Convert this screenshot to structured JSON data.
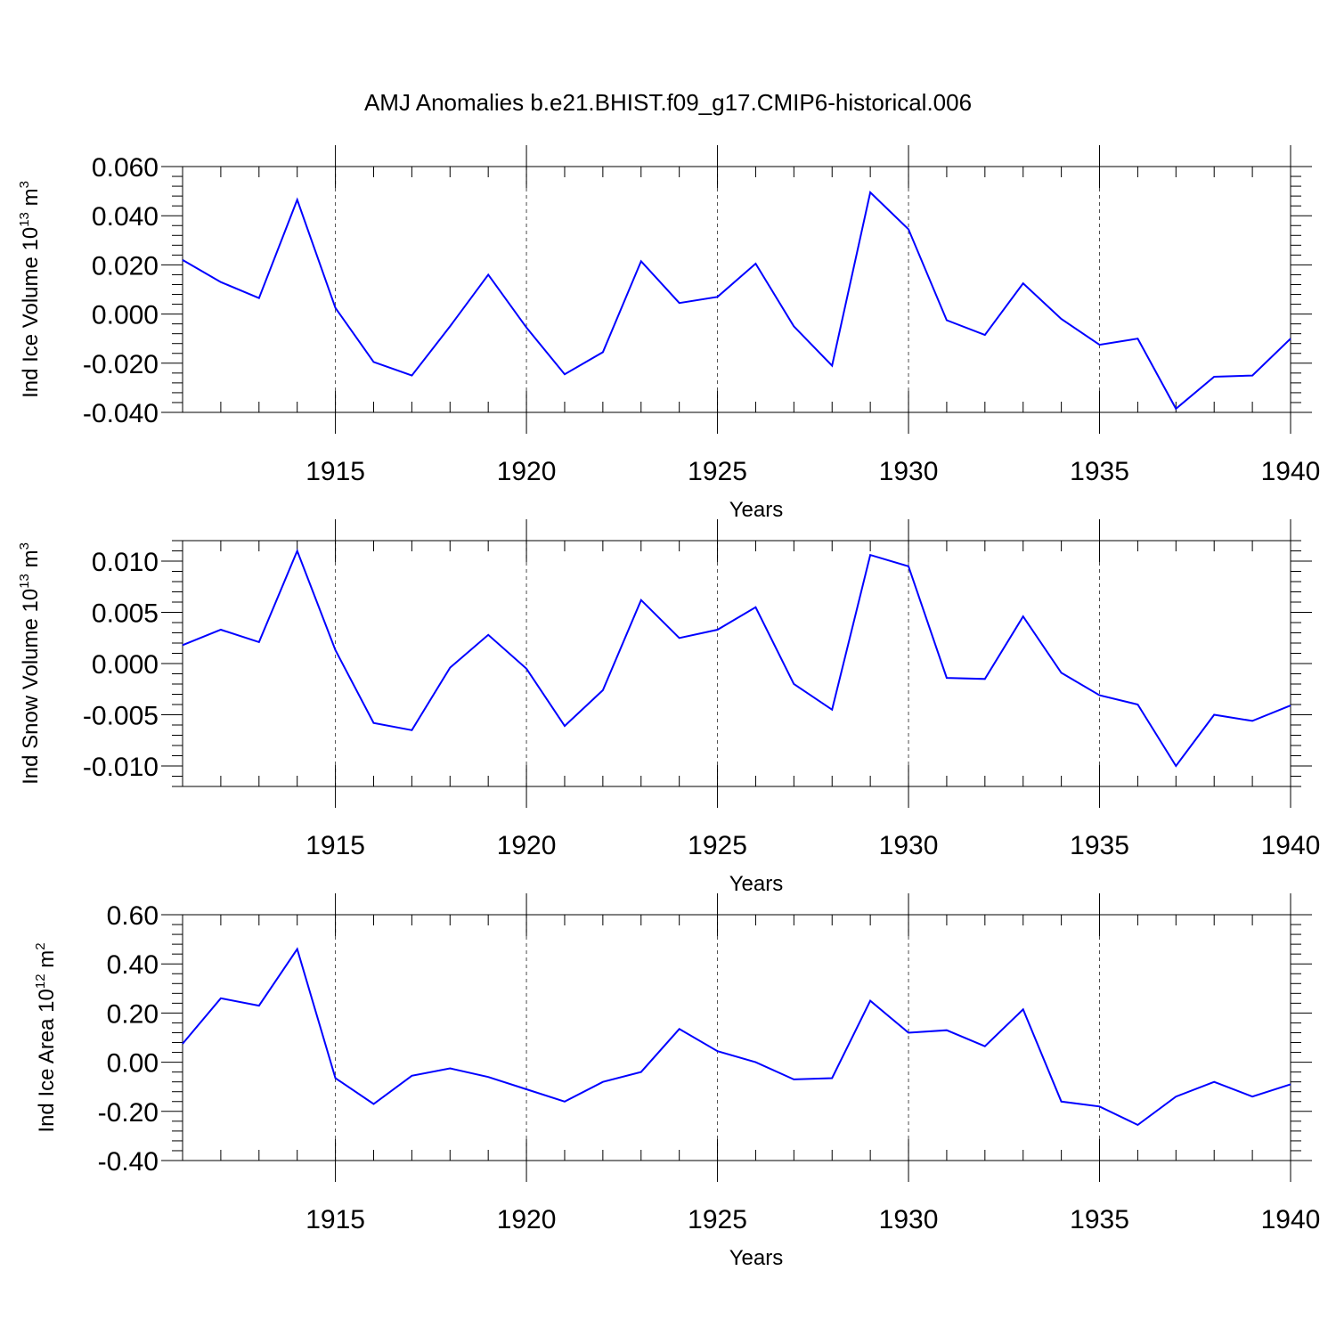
{
  "title": "AMJ Anomalies b.e21.BHIST.f09_g17.CMIP6-historical.006",
  "colors": {
    "series": "#0000ff",
    "axes": "#000000",
    "grid": "#000000"
  },
  "chart_data": [
    {
      "type": "line",
      "xlabel": "Years",
      "ylabel": {
        "main": "Ind Ice Volume 10",
        "sup": "13",
        "unit": " m",
        "unit_sup": "3"
      },
      "xlim": [
        1911,
        1940
      ],
      "ylim": [
        -0.04,
        0.06
      ],
      "yticks": [
        -0.04,
        -0.02,
        0.0,
        0.02,
        0.04,
        0.06
      ],
      "ytick_labels": [
        "-0.040",
        "-0.020",
        "0.000",
        "0.020",
        "0.040",
        "0.060"
      ],
      "xticks": [
        1915,
        1920,
        1925,
        1930,
        1935,
        1940
      ],
      "xtick_labels": [
        "1915",
        "1920",
        "1925",
        "1930",
        "1935",
        "1940"
      ],
      "grid": "vertical dashed at major x ticks",
      "x": [
        1911,
        1912,
        1913,
        1914,
        1915,
        1916,
        1917,
        1918,
        1919,
        1920,
        1921,
        1922,
        1923,
        1924,
        1925,
        1926,
        1927,
        1928,
        1929,
        1930,
        1931,
        1932,
        1933,
        1934,
        1935,
        1936,
        1937,
        1938,
        1939,
        1940
      ],
      "y": [
        0.022,
        0.013,
        0.0065,
        0.0465,
        0.0025,
        -0.0195,
        -0.025,
        -0.005,
        0.016,
        -0.0055,
        -0.0245,
        -0.0155,
        0.0215,
        0.0045,
        0.007,
        0.0205,
        -0.005,
        -0.021,
        0.0495,
        0.0345,
        -0.0025,
        -0.0085,
        0.0125,
        -0.002,
        -0.0125,
        -0.01,
        -0.0385,
        -0.0255,
        -0.025,
        -0.01
      ]
    },
    {
      "type": "line",
      "xlabel": "Years",
      "ylabel": {
        "main": "Ind Snow Volume 10",
        "sup": "13",
        "unit": " m",
        "unit_sup": "3"
      },
      "xlim": [
        1911,
        1940
      ],
      "ylim": [
        -0.012,
        0.012
      ],
      "yticks": [
        -0.01,
        -0.005,
        0.0,
        0.005,
        0.01
      ],
      "ytick_labels": [
        "-0.010",
        "-0.005",
        "0.000",
        "0.005",
        "0.010"
      ],
      "xticks": [
        1915,
        1920,
        1925,
        1930,
        1935,
        1940
      ],
      "xtick_labels": [
        "1915",
        "1920",
        "1925",
        "1930",
        "1935",
        "1940"
      ],
      "grid": "vertical dashed at major x ticks",
      "x": [
        1911,
        1912,
        1913,
        1914,
        1915,
        1916,
        1917,
        1918,
        1919,
        1920,
        1921,
        1922,
        1923,
        1924,
        1925,
        1926,
        1927,
        1928,
        1929,
        1930,
        1931,
        1932,
        1933,
        1934,
        1935,
        1936,
        1937,
        1938,
        1939,
        1940
      ],
      "y": [
        0.0018,
        0.0033,
        0.0021,
        0.011,
        0.0013,
        -0.0058,
        -0.0065,
        -0.0004,
        0.0028,
        -0.0005,
        -0.0061,
        -0.0026,
        0.0062,
        0.0025,
        0.0033,
        0.0055,
        -0.002,
        -0.0045,
        0.0106,
        0.0095,
        -0.0014,
        -0.0015,
        0.0046,
        -0.0009,
        -0.0031,
        -0.004,
        -0.01,
        -0.005,
        -0.0056,
        -0.0041
      ]
    },
    {
      "type": "line",
      "xlabel": "Years",
      "ylabel": {
        "main": "Ind Ice Area 10",
        "sup": "12",
        "unit": " m",
        "unit_sup": "2"
      },
      "xlim": [
        1911,
        1940
      ],
      "ylim": [
        -0.4,
        0.6
      ],
      "yticks": [
        -0.4,
        -0.2,
        0.0,
        0.2,
        0.4,
        0.6
      ],
      "ytick_labels": [
        "-0.40",
        "-0.20",
        "0.00",
        "0.20",
        "0.40",
        "0.60"
      ],
      "xticks": [
        1915,
        1920,
        1925,
        1930,
        1935,
        1940
      ],
      "xtick_labels": [
        "1915",
        "1920",
        "1925",
        "1930",
        "1935",
        "1940"
      ],
      "grid": "vertical dashed at major x ticks",
      "x": [
        1911,
        1912,
        1913,
        1914,
        1915,
        1916,
        1917,
        1918,
        1919,
        1920,
        1921,
        1922,
        1923,
        1924,
        1925,
        1926,
        1927,
        1928,
        1929,
        1930,
        1931,
        1932,
        1933,
        1934,
        1935,
        1936,
        1937,
        1938,
        1939,
        1940
      ],
      "y": [
        0.075,
        0.26,
        0.23,
        0.46,
        -0.065,
        -0.17,
        -0.055,
        -0.025,
        -0.06,
        -0.11,
        -0.16,
        -0.08,
        -0.04,
        0.135,
        0.045,
        0.0,
        -0.07,
        -0.065,
        0.25,
        0.12,
        0.13,
        0.065,
        0.215,
        -0.16,
        -0.18,
        -0.255,
        -0.14,
        -0.08,
        -0.14,
        -0.09
      ]
    }
  ]
}
